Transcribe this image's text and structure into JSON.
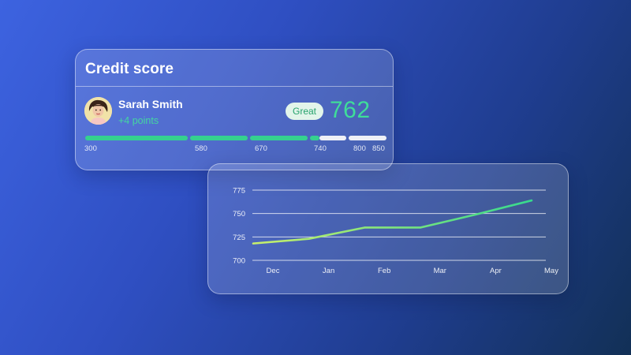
{
  "card": {
    "title": "Credit score",
    "user": {
      "name": "Sarah Smith",
      "points_change": "+4 points"
    },
    "rating_label": "Great",
    "score": "762",
    "scale": {
      "ticks": [
        "300",
        "580",
        "670",
        "740",
        "800",
        "850"
      ],
      "current_value": 762
    }
  },
  "colors": {
    "accent_green": "#3fdd99",
    "line_start": "#c8ef6b",
    "line_end": "#37d98e",
    "badge_bg": "#e2f5ea",
    "badge_text": "#27a36d"
  },
  "chart_data": {
    "type": "line",
    "categories": [
      "Dec",
      "Jan",
      "Feb",
      "Mar",
      "Apr",
      "May"
    ],
    "series": [
      {
        "values": [
          718,
          723,
          735,
          735,
          749,
          764
        ]
      }
    ],
    "yticks": [
      700,
      725,
      750,
      775
    ],
    "ylim": [
      700,
      775
    ],
    "grid": true
  }
}
